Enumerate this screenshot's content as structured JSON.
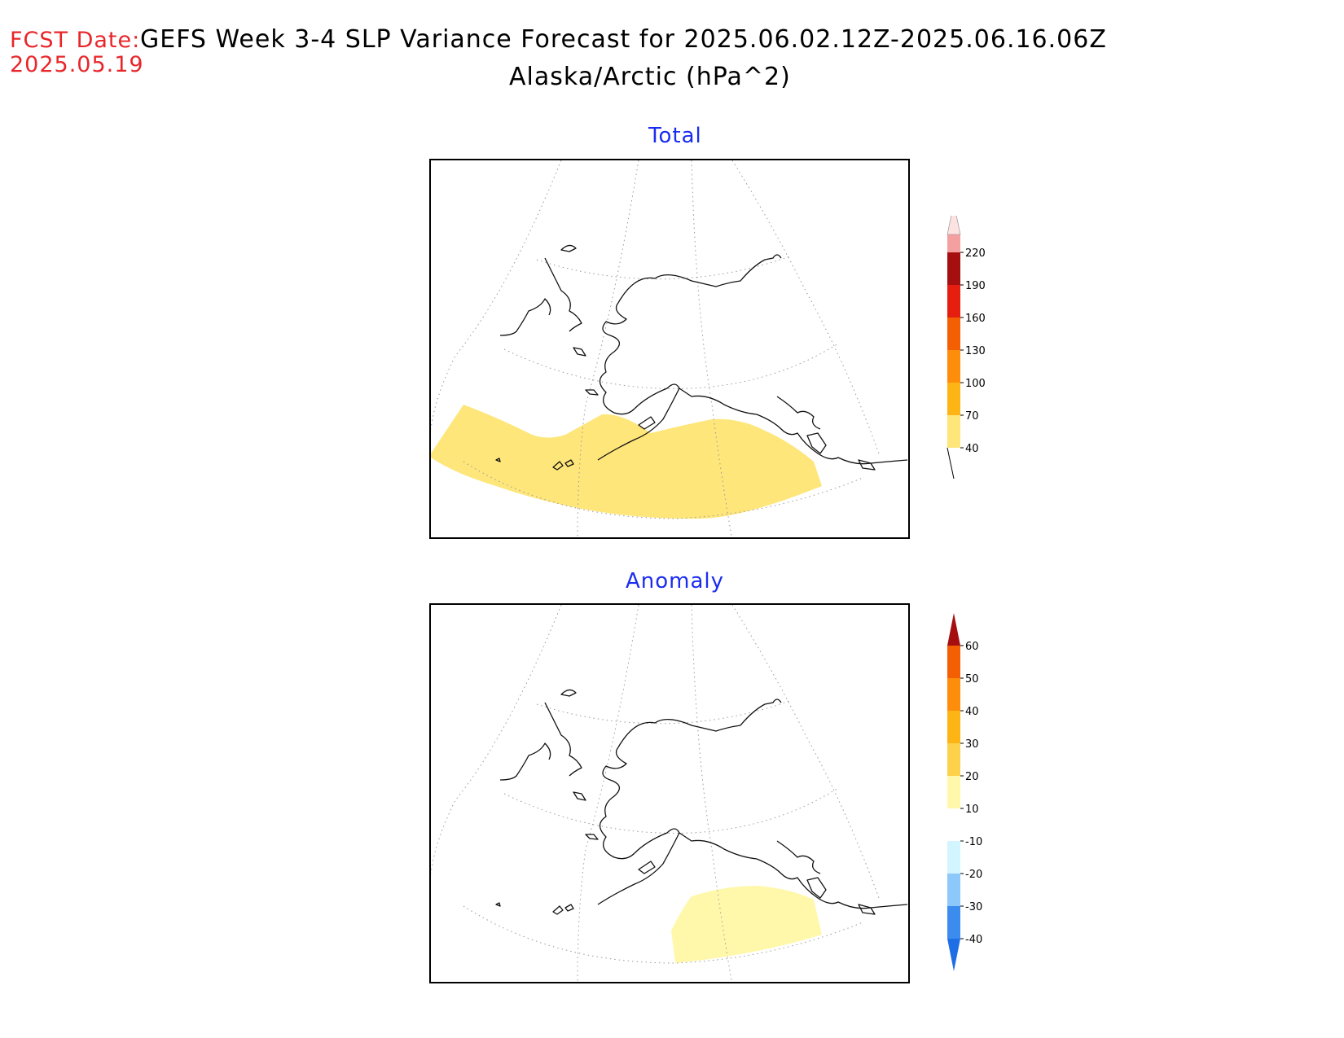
{
  "header": {
    "fcst_label": "FCST Date:",
    "fcst_date": "2025.05.19",
    "title": "GEFS Week 3-4 SLP Variance Forecast for 2025.06.02.12Z-2025.06.16.06Z",
    "subtitle": "Alaska/Arctic (hPa^2)"
  },
  "panels": [
    {
      "title": "Total",
      "colorbar": {
        "levels": [
          "40",
          "70",
          "100",
          "130",
          "160",
          "190",
          "220"
        ],
        "colors": [
          "#fee67a",
          "#fdb415",
          "#fd8d0a",
          "#f45f04",
          "#e51e10",
          "#a50f0f",
          "#f4a0a0",
          "#fde2e2"
        ]
      },
      "shading": [
        {
          "range": "40-70",
          "color": "#fee67a"
        }
      ]
    },
    {
      "title": "Anomaly",
      "colorbar": {
        "levels": [
          "-40",
          "-30",
          "-20",
          "-10",
          "10",
          "20",
          "30",
          "40",
          "50",
          "60"
        ],
        "colors": [
          "#1e6ee6",
          "#3c8cf0",
          "#8cc8fa",
          "#d2f5ff",
          "#ffffff",
          "#fff8aa",
          "#fdd24a",
          "#fdb415",
          "#fd8d0a",
          "#f45f04",
          "#e51e10",
          "#a50f0f"
        ]
      },
      "shading": [
        {
          "range": "10-20",
          "color": "#fff8aa"
        }
      ]
    }
  ]
}
